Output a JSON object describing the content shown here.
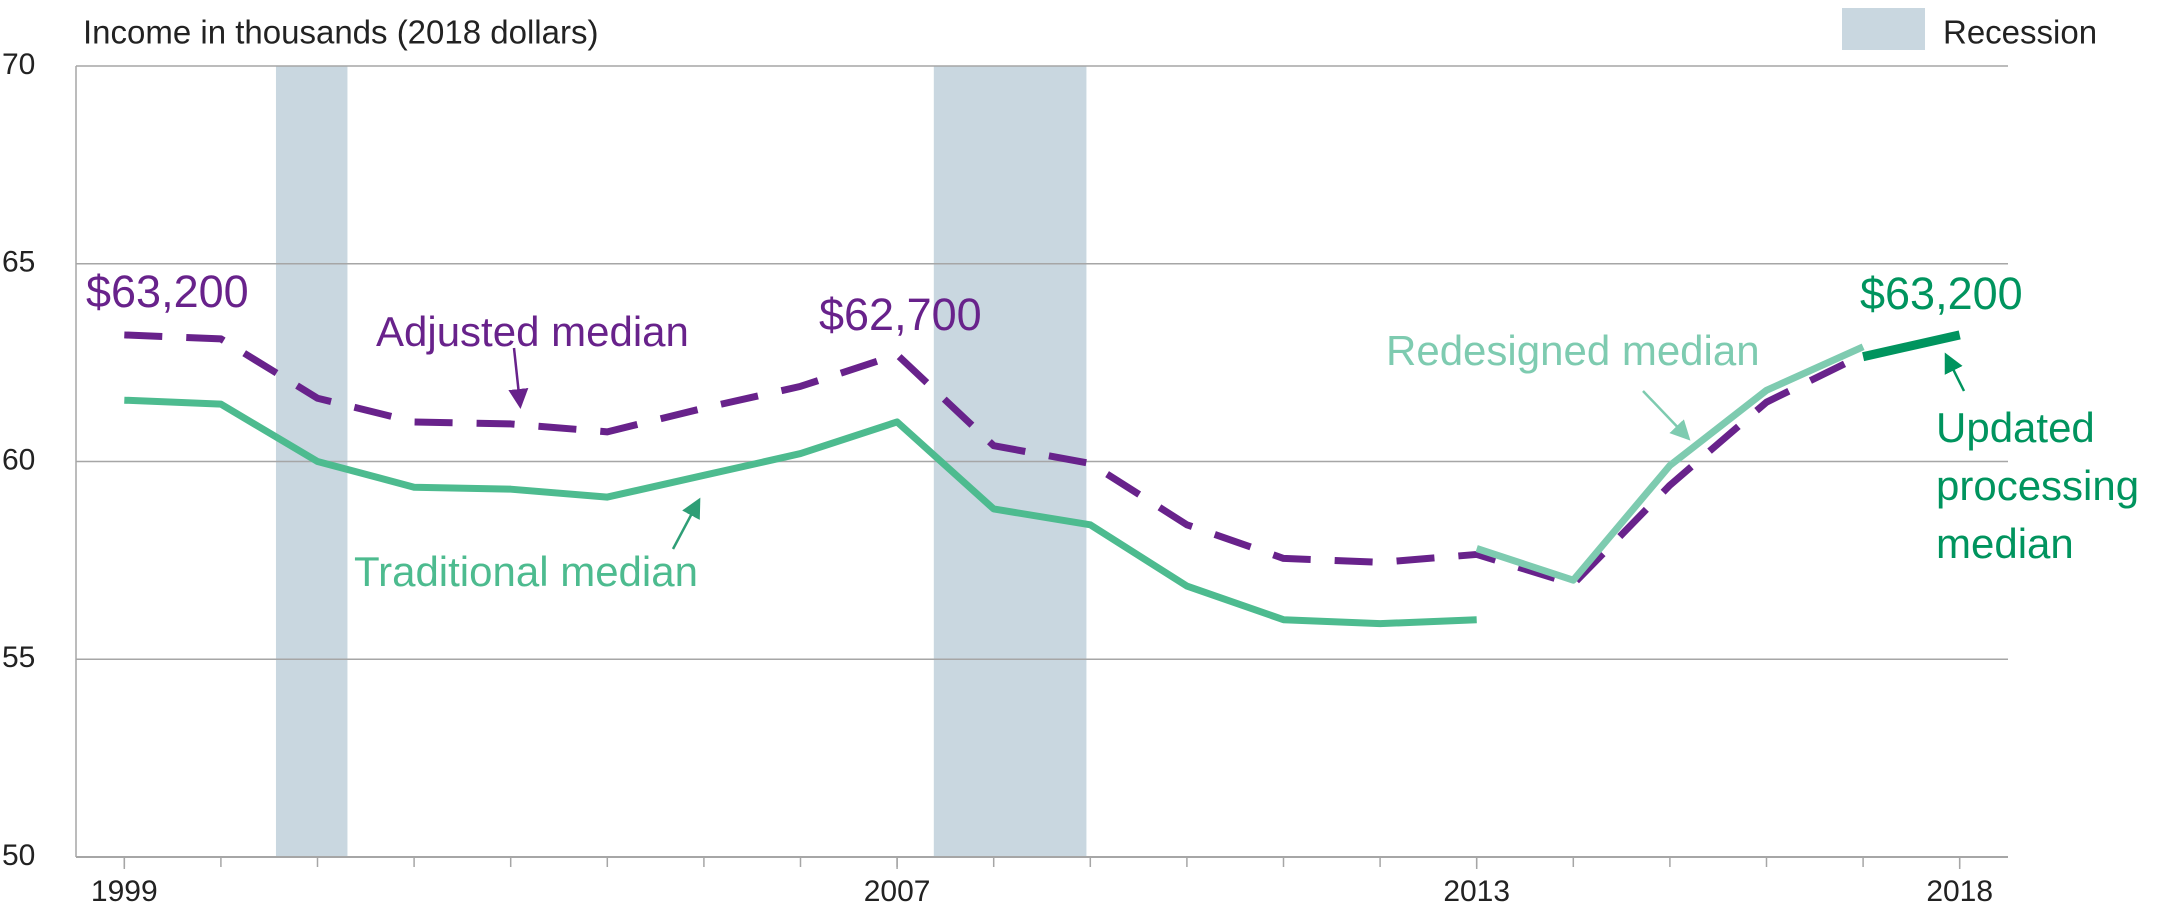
{
  "chart_data": {
    "type": "line",
    "y_label": "Income in thousands (2018 dollars)",
    "x": [
      1999,
      2000,
      2001,
      2002,
      2003,
      2004,
      2005,
      2006,
      2007,
      2008,
      2009,
      2010,
      2011,
      2012,
      2013,
      2014,
      2015,
      2016,
      2017,
      2018
    ],
    "series": [
      {
        "name": "Adjusted median",
        "color": "#68228b",
        "dash": true,
        "values": [
          63.2,
          63.1,
          61.6,
          61.0,
          60.95,
          60.75,
          61.35,
          61.9,
          62.7,
          60.4,
          59.95,
          58.4,
          57.55,
          57.45,
          57.65,
          56.9,
          59.4,
          61.5,
          62.7,
          null
        ],
        "value_labels": [
          "$63,200",
          null,
          null,
          null,
          null,
          null,
          null,
          null,
          "$62,700",
          null,
          null,
          null,
          null,
          null,
          null,
          null,
          null,
          null,
          null,
          null
        ]
      },
      {
        "name": "Traditional median",
        "color": "#4dbb8f",
        "dash": false,
        "values": [
          61.55,
          61.45,
          60.0,
          59.35,
          59.3,
          59.1,
          59.65,
          60.2,
          61.0,
          58.8,
          58.4,
          56.85,
          56.0,
          55.9,
          56.0,
          null,
          null,
          null,
          null,
          null
        ]
      },
      {
        "name": "Redesigned median",
        "color": "#7ecbb0",
        "dash": false,
        "values": [
          null,
          null,
          null,
          null,
          null,
          null,
          null,
          null,
          null,
          null,
          null,
          null,
          null,
          null,
          57.8,
          57.0,
          59.9,
          61.8,
          62.9,
          null
        ]
      },
      {
        "name": [
          "Updated",
          "processing",
          "median"
        ],
        "color": "#00945e",
        "dash": false,
        "values": [
          null,
          null,
          null,
          null,
          null,
          null,
          null,
          null,
          null,
          null,
          null,
          null,
          null,
          null,
          null,
          null,
          null,
          null,
          62.65,
          63.2
        ],
        "value_labels": [
          null,
          null,
          null,
          null,
          null,
          null,
          null,
          null,
          null,
          null,
          null,
          null,
          null,
          null,
          null,
          null,
          null,
          null,
          null,
          "$63,200"
        ]
      }
    ],
    "recessions": [
      [
        2000.57,
        2001.31
      ],
      [
        2007.38,
        2008.96
      ]
    ],
    "recession_color": "#c9d7e0",
    "legend": "Recession",
    "xlim": [
      1998.5,
      2018.5
    ],
    "xticks": [
      1999,
      2007,
      2013,
      2018
    ],
    "ylim": [
      50,
      70
    ],
    "yticks": [
      50,
      55,
      60,
      65,
      70
    ],
    "grid": true
  }
}
